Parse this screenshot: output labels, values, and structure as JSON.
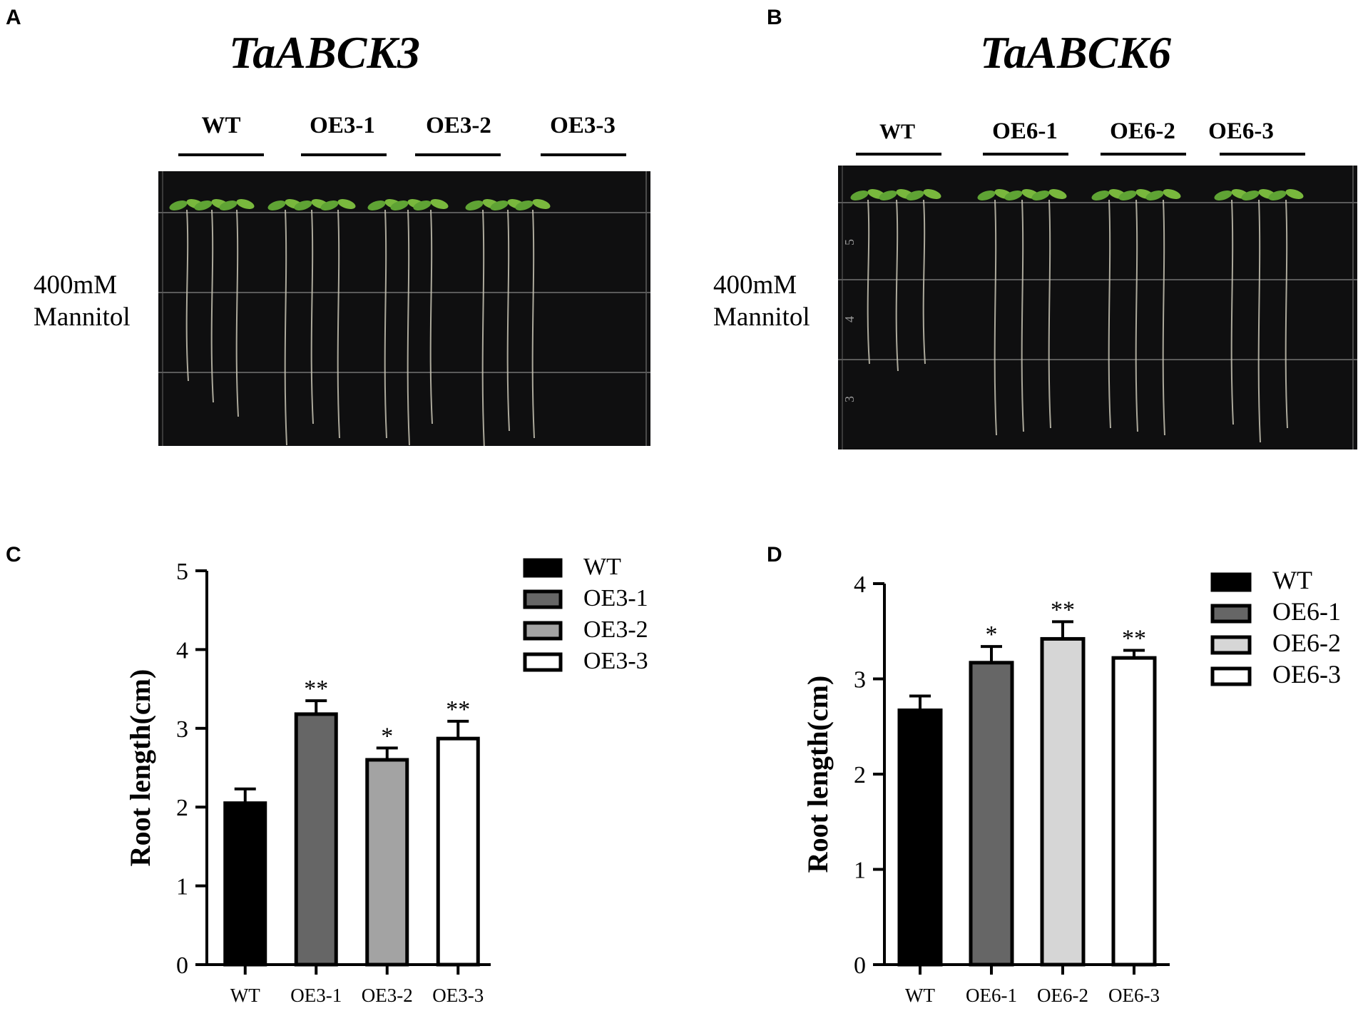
{
  "panels": {
    "A": {
      "letter": "A",
      "gene": "TaABCK3",
      "lines": [
        "WT",
        "OE3-1",
        "OE3-2",
        "OE3-3"
      ],
      "treatment": "400mM\nMannitol",
      "photo_icon": "seedling-plate-photo",
      "ruler_marks": []
    },
    "B": {
      "letter": "B",
      "gene": "TaABCK6",
      "lines": [
        "WT",
        "OE6-1",
        "OE6-2",
        "OE6-3"
      ],
      "treatment": "400mM\nMannitol",
      "photo_icon": "seedling-plate-photo",
      "ruler_marks": [
        "5",
        "4",
        "3"
      ]
    },
    "C": {
      "letter": "C"
    },
    "D": {
      "letter": "D"
    }
  },
  "chart_data": [
    {
      "type": "bar",
      "panel": "C",
      "categories": [
        "WT",
        "OE3-1",
        "OE3-2",
        "OE3-3"
      ],
      "values": [
        2.05,
        3.18,
        2.6,
        2.87
      ],
      "errors": [
        0.18,
        0.17,
        0.15,
        0.22
      ],
      "significance": [
        "",
        "**",
        "*",
        "**"
      ],
      "fills": [
        "#000000",
        "#666666",
        "#a3a3a3",
        "#ffffff"
      ],
      "ylabel": "Root length(cm)",
      "ylim": [
        0,
        5
      ],
      "yticks": [
        "0",
        "1",
        "2",
        "3",
        "4",
        "5"
      ],
      "legend": [
        "WT",
        "OE3-1",
        "OE3-2",
        "OE3-3"
      ],
      "legend_position": "top-right",
      "grid": false
    },
    {
      "type": "bar",
      "panel": "D",
      "categories": [
        "WT",
        "OE6-1",
        "OE6-2",
        "OE6-3"
      ],
      "values": [
        2.67,
        3.17,
        3.42,
        3.22
      ],
      "errors": [
        0.15,
        0.17,
        0.18,
        0.08
      ],
      "significance": [
        "",
        "*",
        "**",
        "**"
      ],
      "fills": [
        "#000000",
        "#666666",
        "#d6d6d6",
        "#ffffff"
      ],
      "ylabel": "Root length(cm)",
      "ylim": [
        0,
        4
      ],
      "yticks": [
        "0",
        "1",
        "2",
        "3",
        "4"
      ],
      "legend": [
        "WT",
        "OE6-1",
        "OE6-2",
        "OE6-3"
      ],
      "legend_position": "top-right",
      "grid": false
    }
  ]
}
